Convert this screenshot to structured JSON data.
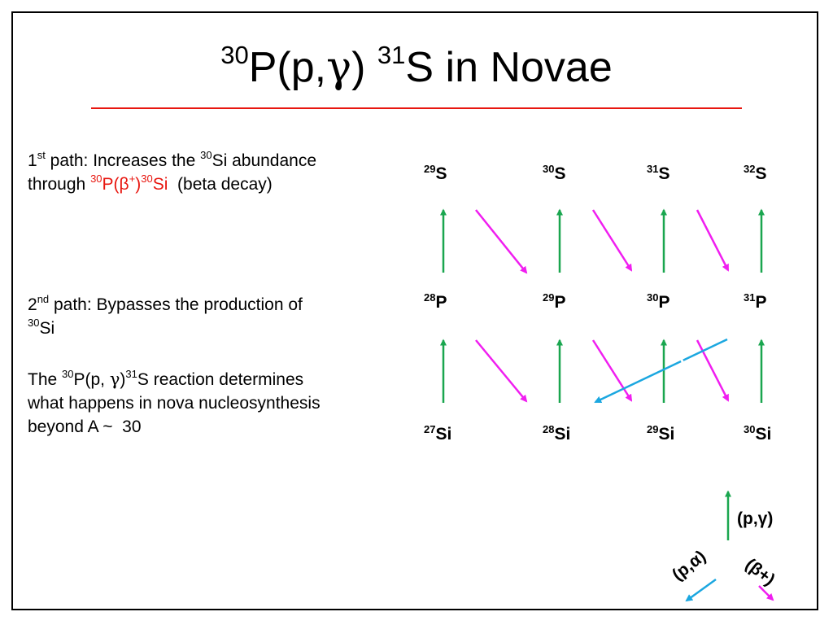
{
  "slide": {
    "title": {
      "pre": "30",
      "a": "P(p,",
      "gamma": "γ",
      "b": ")",
      "mass": "31",
      "c": "S in Novae"
    },
    "path1": {
      "num": "1",
      "ord": "st",
      "t1": " path: Increases the ",
      "m1": "30",
      "t2": "Si abundance",
      "t3": "through ",
      "rm1": "30",
      "r1": "P(β",
      "rs": "+",
      "r2": ")",
      "rm2": "30",
      "r3": "Si",
      "t4": "  (beta decay)"
    },
    "path2": {
      "num": "2",
      "ord": "nd",
      "t1": " path: Bypasses the production of",
      "m1": "30",
      "t2": "Si"
    },
    "path3": {
      "t1": "The ",
      "m1": "30",
      "t2": "P(p, ",
      "g": "γ",
      "t3": ")",
      "m2": "31",
      "t4": "S reaction determines",
      "t5": "what happens in nova nucleosynthesis",
      "t6": "beyond A ~  30"
    }
  },
  "nuclides": {
    "s29": {
      "mass": "29",
      "el": "S"
    },
    "s30": {
      "mass": "30",
      "el": "S"
    },
    "s31": {
      "mass": "31",
      "el": "S"
    },
    "s32": {
      "mass": "32",
      "el": "S"
    },
    "p28": {
      "mass": "28",
      "el": "P"
    },
    "p29": {
      "mass": "29",
      "el": "P"
    },
    "p30": {
      "mass": "30",
      "el": "P"
    },
    "p31": {
      "mass": "31",
      "el": "P"
    },
    "si27": {
      "mass": "27",
      "el": "Si"
    },
    "si28": {
      "mass": "28",
      "el": "Si"
    },
    "si29": {
      "mass": "29",
      "el": "Si"
    },
    "si30": {
      "mass": "30",
      "el": "Si"
    }
  },
  "legend": {
    "pg": "(p,γ)",
    "pa": "(p,α)",
    "beta": "(β+)"
  },
  "colors": {
    "title_rule": "#e8160f",
    "proton_capture": "#1aa64f",
    "beta_decay": "#f01ef0",
    "p_alpha": "#1ba7e0"
  }
}
